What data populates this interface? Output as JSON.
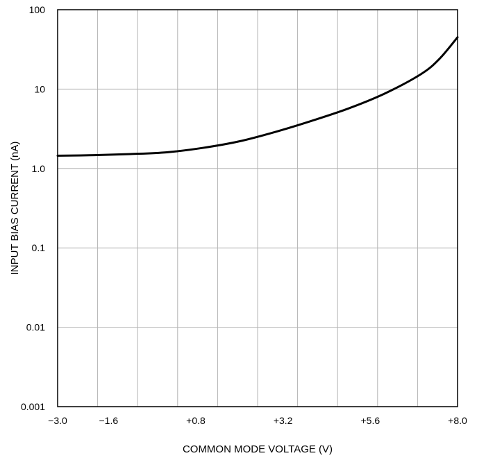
{
  "chart_data": {
    "type": "line",
    "title": "",
    "xlabel": "COMMON MODE VOLTAGE (V)",
    "ylabel": "INPUT BIAS CURRENT (nA)",
    "xlim": [
      -3.0,
      8.0
    ],
    "ylim": [
      0.001,
      100
    ],
    "yscale": "log",
    "grid": true,
    "x_ticks": [
      {
        "value": -3.0,
        "label": "−3.0"
      },
      {
        "value": -1.6,
        "label": "−1.6"
      },
      {
        "value": 0.8,
        "label": "+0.8"
      },
      {
        "value": 3.2,
        "label": "+3.2"
      },
      {
        "value": 5.6,
        "label": "+5.6"
      },
      {
        "value": 8.0,
        "label": "+8.0"
      }
    ],
    "y_ticks": [
      {
        "value": 0.001,
        "label": "0.001"
      },
      {
        "value": 0.01,
        "label": "0.01"
      },
      {
        "value": 0.1,
        "label": "0.1"
      },
      {
        "value": 1,
        "label": "1.0"
      },
      {
        "value": 10,
        "label": "10"
      },
      {
        "value": 100,
        "label": "100"
      }
    ],
    "series": [
      {
        "color": "#000000",
        "points": [
          {
            "x": -3.0,
            "y": 1.45
          },
          {
            "x": -2.0,
            "y": 1.47
          },
          {
            "x": -1.0,
            "y": 1.52
          },
          {
            "x": 0.0,
            "y": 1.6
          },
          {
            "x": 1.0,
            "y": 1.82
          },
          {
            "x": 2.0,
            "y": 2.2
          },
          {
            "x": 3.0,
            "y": 2.9
          },
          {
            "x": 4.0,
            "y": 4.0
          },
          {
            "x": 5.0,
            "y": 5.7
          },
          {
            "x": 6.0,
            "y": 8.8
          },
          {
            "x": 7.0,
            "y": 15.5
          },
          {
            "x": 7.5,
            "y": 24
          },
          {
            "x": 8.0,
            "y": 45
          }
        ]
      }
    ]
  }
}
